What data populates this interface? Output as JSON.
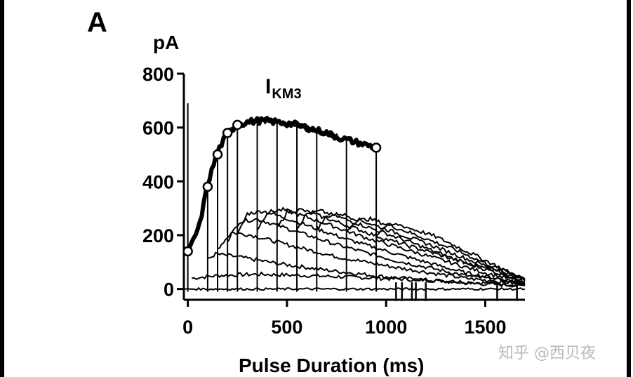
{
  "panel_label": "A",
  "watermark": "知乎 @西贝夜",
  "chart_data": {
    "type": "line",
    "title": "",
    "ylabel": "pA",
    "xlabel": "Pulse Duration (ms)",
    "xlim": [
      -20,
      1700
    ],
    "ylim": [
      -40,
      800
    ],
    "x_ticks": [
      0,
      500,
      1000,
      1500
    ],
    "y_ticks": [
      0,
      200,
      400,
      600,
      800
    ],
    "x_tick_labels": [
      "0",
      "500",
      "1000",
      "1500"
    ],
    "y_tick_labels": [
      "0",
      "200",
      "400",
      "600",
      "800"
    ],
    "annotation": {
      "main": "I",
      "sub": "KM3"
    },
    "envelope": {
      "x": [
        0,
        60,
        100,
        150,
        200,
        250,
        300,
        350,
        400,
        450,
        500,
        550,
        600,
        650,
        700,
        750,
        800,
        850,
        900,
        950
      ],
      "y": [
        130,
        240,
        390,
        510,
        580,
        610,
        620,
        625,
        625,
        620,
        615,
        610,
        600,
        590,
        580,
        565,
        555,
        545,
        535,
        525
      ]
    },
    "markers": {
      "x": [
        0,
        100,
        150,
        200,
        250,
        950
      ],
      "y": [
        140,
        380,
        500,
        580,
        610,
        525
      ]
    },
    "pulse_durations": [
      0,
      100,
      150,
      200,
      250,
      350,
      450,
      550,
      650,
      800,
      950
    ],
    "tail_currents": [
      {
        "x": [
          20,
          150,
          350,
          600,
          900,
          1300,
          1700
        ],
        "y": [
          40,
          50,
          55,
          50,
          42,
          30,
          15
        ]
      },
      {
        "x": [
          100,
          140,
          250,
          450,
          700,
          1000,
          1400,
          1700
        ],
        "y": [
          110,
          130,
          120,
          95,
          70,
          45,
          22,
          12
        ]
      },
      {
        "x": [
          150,
          220,
          320,
          500,
          750,
          1050,
          1400,
          1700
        ],
        "y": [
          150,
          210,
          200,
          165,
          120,
          80,
          40,
          18
        ]
      },
      {
        "x": [
          200,
          260,
          350,
          500,
          750,
          1050,
          1400,
          1700
        ],
        "y": [
          180,
          250,
          260,
          225,
          165,
          105,
          50,
          20
        ]
      },
      {
        "x": [
          250,
          300,
          380,
          550,
          800,
          1100,
          1400,
          1700
        ],
        "y": [
          200,
          280,
          290,
          250,
          185,
          120,
          60,
          22
        ]
      },
      {
        "x": [
          350,
          400,
          480,
          650,
          900,
          1200,
          1500,
          1700
        ],
        "y": [
          220,
          285,
          295,
          255,
          190,
          125,
          60,
          25
        ]
      },
      {
        "x": [
          450,
          500,
          570,
          750,
          1000,
          1300,
          1550,
          1700
        ],
        "y": [
          225,
          285,
          295,
          250,
          185,
          120,
          62,
          28
        ]
      },
      {
        "x": [
          550,
          600,
          670,
          850,
          1100,
          1350,
          1600,
          1700
        ],
        "y": [
          225,
          280,
          290,
          245,
          180,
          110,
          55,
          30
        ]
      },
      {
        "x": [
          650,
          700,
          770,
          950,
          1200,
          1450,
          1650,
          1700
        ],
        "y": [
          220,
          270,
          280,
          235,
          170,
          100,
          50,
          35
        ]
      },
      {
        "x": [
          800,
          850,
          920,
          1100,
          1350,
          1550,
          1700
        ],
        "y": [
          215,
          255,
          260,
          215,
          145,
          80,
          40
        ]
      },
      {
        "x": [
          950,
          1000,
          1060,
          1250,
          1450,
          1600,
          1700
        ],
        "y": [
          200,
          235,
          240,
          195,
          125,
          70,
          35
        ]
      }
    ],
    "artifacts": [
      1050,
      1080,
      1130,
      1150,
      1200,
      1560,
      1660
    ]
  }
}
